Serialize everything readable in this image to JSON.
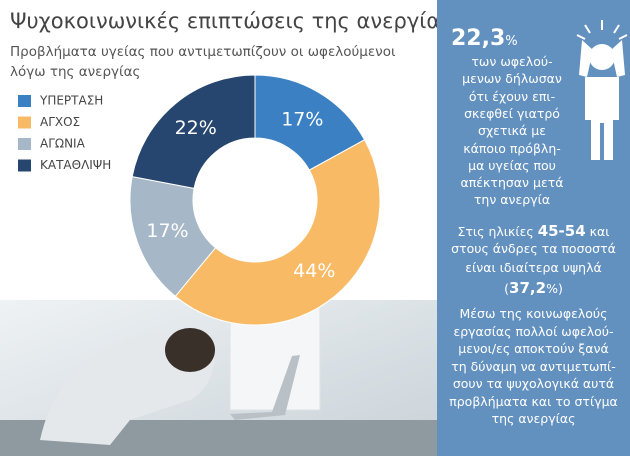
{
  "chart_data": {
    "type": "donut",
    "title": "Ψυχοκοινωνικές επιπτώσεις της ανεργίας",
    "subtitle": [
      "Προβλήματα υγείας που αντιμετωπίζουν οι ωφελούμενοι",
      "λόγω της ανεργίας"
    ],
    "categories": [
      "ΥΠΕΡΤΑΣΗ",
      "ΑΓΧΟΣ",
      "ΑΓΩΝΙΑ",
      "ΚΑΤΑΘΛΙΨΗ"
    ],
    "values": [
      17,
      44,
      17,
      22
    ],
    "value_labels": [
      "17%",
      "44%",
      "17%",
      "22%"
    ],
    "colors": [
      "#3a80c3",
      "#f9ba65",
      "#a6b8c8",
      "#27466f"
    ]
  },
  "sidebar": {
    "stat": [
      "22,3",
      "%"
    ],
    "para1": [
      "των ωφελού-",
      "μενων δήλωσαν",
      "ότι έχουν επι-",
      "σκεφθεί γιατρό",
      "σχετικά με",
      "κάποιο πρόβλη-",
      "μα υγείας που",
      "απέκτησαν μετά",
      "την ανεργία"
    ],
    "para2": [
      [
        "Στις ηλικίες ",
        "45-54",
        " και"
      ],
      [
        "στους άνδρες τα ποσοστά"
      ],
      [
        "είναι ιδιαίτερα υψηλά"
      ],
      [
        "(",
        "37,2",
        "%)"
      ]
    ],
    "para3": [
      "Μέσω της κοινωφελούς",
      "εργασίας πολλοί ωφελού-",
      "μενοι/ες αποκτούν ξανά",
      "τη δύναμη να αντιμετωπί-",
      "σουν τα ψυχολογικά αυτά",
      "προβλήματα και το στίγμα",
      "της ανεργίας"
    ]
  }
}
